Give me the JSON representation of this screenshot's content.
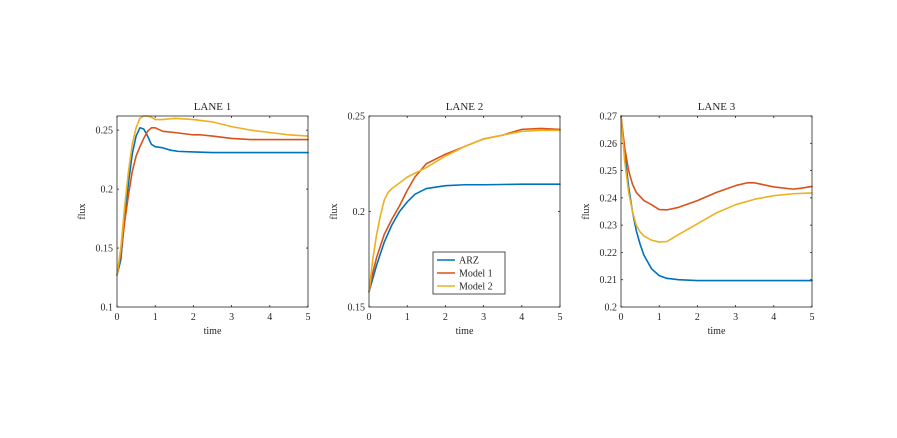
{
  "chart_data": [
    {
      "type": "line",
      "title": "LANE 1",
      "xlabel": "time",
      "ylabel": "flux",
      "xlim": [
        0,
        5
      ],
      "ylim": [
        0.1,
        0.262
      ],
      "xticks": [
        0,
        1,
        2,
        3,
        4,
        5
      ],
      "yticks": [
        0.1,
        0.15,
        0.2,
        0.25
      ],
      "xtick_labels": [
        "0",
        "1",
        "2",
        "3",
        "4",
        "5"
      ],
      "ytick_labels": [
        "0.1",
        "0.15",
        "0.2",
        "0.25"
      ],
      "series": [
        {
          "name": "ARZ",
          "color": "#0072BD",
          "x": [
            0,
            0.1,
            0.2,
            0.3,
            0.4,
            0.5,
            0.6,
            0.7,
            0.8,
            0.9,
            1.0,
            1.2,
            1.4,
            1.6,
            2.0,
            2.5,
            3.0,
            4.0,
            5.0
          ],
          "y": [
            0.127,
            0.14,
            0.175,
            0.205,
            0.23,
            0.245,
            0.252,
            0.251,
            0.245,
            0.238,
            0.236,
            0.235,
            0.233,
            0.232,
            0.2315,
            0.231,
            0.231,
            0.231,
            0.231
          ]
        },
        {
          "name": "Model 1",
          "color": "#D95319",
          "x": [
            0,
            0.1,
            0.2,
            0.3,
            0.4,
            0.5,
            0.6,
            0.7,
            0.8,
            0.9,
            1.0,
            1.2,
            1.5,
            2.0,
            2.2,
            2.5,
            3.0,
            3.5,
            4.0,
            4.5,
            5.0
          ],
          "y": [
            0.127,
            0.145,
            0.172,
            0.195,
            0.215,
            0.228,
            0.236,
            0.243,
            0.249,
            0.252,
            0.252,
            0.249,
            0.248,
            0.246,
            0.246,
            0.245,
            0.243,
            0.242,
            0.242,
            0.242,
            0.242
          ]
        },
        {
          "name": "Model 2",
          "color": "#EDB120",
          "x": [
            0,
            0.1,
            0.2,
            0.3,
            0.4,
            0.5,
            0.6,
            0.7,
            0.8,
            0.9,
            1.0,
            1.2,
            1.5,
            2.0,
            2.5,
            3.0,
            3.5,
            4.0,
            4.5,
            5.0
          ],
          "y": [
            0.127,
            0.15,
            0.185,
            0.215,
            0.238,
            0.252,
            0.26,
            0.262,
            0.262,
            0.261,
            0.259,
            0.259,
            0.26,
            0.259,
            0.257,
            0.253,
            0.25,
            0.248,
            0.246,
            0.245
          ]
        }
      ]
    },
    {
      "type": "line",
      "title": "LANE 2",
      "xlabel": "time",
      "ylabel": "flux",
      "xlim": [
        0,
        5
      ],
      "ylim": [
        0.15,
        0.25
      ],
      "xticks": [
        0,
        1,
        2,
        3,
        4,
        5
      ],
      "yticks": [
        0.15,
        0.2,
        0.25
      ],
      "xtick_labels": [
        "0",
        "1",
        "2",
        "3",
        "4",
        "5"
      ],
      "ytick_labels": [
        "0.15",
        "0.2",
        "0.25"
      ],
      "legend": {
        "position": "lower-center",
        "entries": [
          "ARZ",
          "Model 1",
          "Model 2"
        ]
      },
      "series": [
        {
          "name": "ARZ",
          "color": "#0072BD",
          "x": [
            0,
            0.2,
            0.4,
            0.6,
            0.8,
            1.0,
            1.2,
            1.5,
            2.0,
            2.5,
            3.0,
            4.0,
            5.0
          ],
          "y": [
            0.158,
            0.172,
            0.184,
            0.193,
            0.2,
            0.205,
            0.209,
            0.212,
            0.2135,
            0.214,
            0.214,
            0.2143,
            0.2143
          ]
        },
        {
          "name": "Model 1",
          "color": "#D95319",
          "x": [
            0,
            0.1,
            0.2,
            0.4,
            0.6,
            0.8,
            1.0,
            1.2,
            1.5,
            2.0,
            2.5,
            3.0,
            3.5,
            4.0,
            4.5,
            5.0
          ],
          "y": [
            0.158,
            0.168,
            0.176,
            0.188,
            0.196,
            0.203,
            0.211,
            0.218,
            0.225,
            0.23,
            0.234,
            0.238,
            0.24,
            0.243,
            0.2435,
            0.243
          ]
        },
        {
          "name": "Model 2",
          "color": "#EDB120",
          "x": [
            0,
            0.1,
            0.2,
            0.3,
            0.4,
            0.5,
            0.6,
            0.8,
            1.0,
            1.3,
            1.5,
            2.0,
            2.5,
            3.0,
            3.5,
            4.0,
            4.5,
            5.0
          ],
          "y": [
            0.158,
            0.175,
            0.188,
            0.198,
            0.206,
            0.21,
            0.212,
            0.215,
            0.218,
            0.221,
            0.223,
            0.229,
            0.234,
            0.238,
            0.24,
            0.242,
            0.2425,
            0.2425
          ]
        }
      ]
    },
    {
      "type": "line",
      "title": "LANE 3",
      "xlabel": "time",
      "ylabel": "flux",
      "xlim": [
        0,
        5
      ],
      "ylim": [
        0.2,
        0.27
      ],
      "xticks": [
        0,
        1,
        2,
        3,
        4,
        5
      ],
      "yticks": [
        0.2,
        0.21,
        0.22,
        0.23,
        0.24,
        0.25,
        0.26,
        0.27
      ],
      "xtick_labels": [
        "0",
        "1",
        "2",
        "3",
        "4",
        "5"
      ],
      "ytick_labels": [
        "0.2",
        "0.21",
        "0.22",
        "0.23",
        "0.24",
        "0.25",
        "0.26",
        "0.27"
      ],
      "series": [
        {
          "name": "ARZ",
          "color": "#0072BD",
          "x": [
            0,
            0.1,
            0.2,
            0.3,
            0.4,
            0.5,
            0.6,
            0.8,
            1.0,
            1.2,
            1.5,
            2.0,
            3.0,
            4.0,
            5.0
          ],
          "y": [
            0.27,
            0.256,
            0.244,
            0.235,
            0.228,
            0.223,
            0.219,
            0.214,
            0.2115,
            0.2105,
            0.21,
            0.2097,
            0.2097,
            0.2097,
            0.2097
          ]
        },
        {
          "name": "Model 1",
          "color": "#D95319",
          "x": [
            0,
            0.1,
            0.2,
            0.3,
            0.4,
            0.6,
            0.8,
            1.0,
            1.2,
            1.5,
            2.0,
            2.5,
            3.0,
            3.3,
            3.5,
            4.0,
            4.5,
            4.7,
            5.0
          ],
          "y": [
            0.27,
            0.258,
            0.25,
            0.245,
            0.242,
            0.239,
            0.2375,
            0.2357,
            0.2356,
            0.2365,
            0.239,
            0.242,
            0.2445,
            0.2455,
            0.2455,
            0.244,
            0.2432,
            0.2435,
            0.2442
          ]
        },
        {
          "name": "Model 2",
          "color": "#EDB120",
          "x": [
            0,
            0.1,
            0.2,
            0.3,
            0.4,
            0.5,
            0.6,
            0.8,
            1.0,
            1.2,
            1.5,
            2.0,
            2.5,
            3.0,
            3.5,
            4.0,
            4.5,
            5.0
          ],
          "y": [
            0.27,
            0.253,
            0.242,
            0.235,
            0.23,
            0.2275,
            0.226,
            0.2245,
            0.2238,
            0.224,
            0.2265,
            0.2305,
            0.2345,
            0.2375,
            0.2395,
            0.2408,
            0.2415,
            0.2418
          ]
        }
      ]
    }
  ]
}
